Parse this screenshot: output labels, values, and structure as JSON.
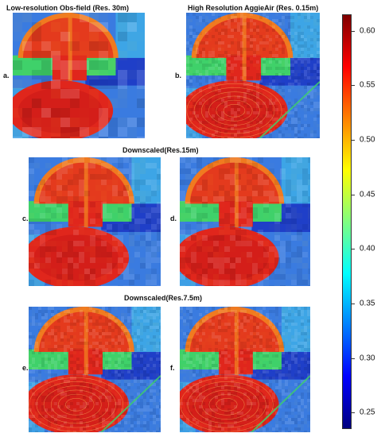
{
  "titles": {
    "low_res": "Low-resolution Obs-field (Res. 30m)",
    "high_res": "High Resolution AggieAir (Res. 0.15m)",
    "down15": "Downscaled(Res.15m)",
    "down75": "Downscaled(Res.7.5m)"
  },
  "panel_labels": {
    "a": "a.",
    "b": "b.",
    "c": "c.",
    "d": "d.",
    "e": "e.",
    "f": "f."
  },
  "colorbar": {
    "ticks": [
      "0.60",
      "0.55",
      "0.50",
      "0.45",
      "0.40",
      "0.35",
      "0.30",
      "0.25"
    ],
    "tick_values": [
      0.6,
      0.55,
      0.5,
      0.45,
      0.4,
      0.35,
      0.3,
      0.25
    ],
    "min": 0.235,
    "max": 0.615,
    "colormap": [
      "#00007f",
      "#0000ff",
      "#0080ff",
      "#00ffff",
      "#80ff80",
      "#ffff00",
      "#ff8000",
      "#ff0000",
      "#7f0000"
    ]
  },
  "colors": {
    "field_red": "#e0261c",
    "field_orange": "#f07a20",
    "strip_green": "#3fd16a",
    "background_blue": "#3a7be0",
    "deep_blue": "#1f3fc8",
    "cyan": "#3fb8e8"
  }
}
